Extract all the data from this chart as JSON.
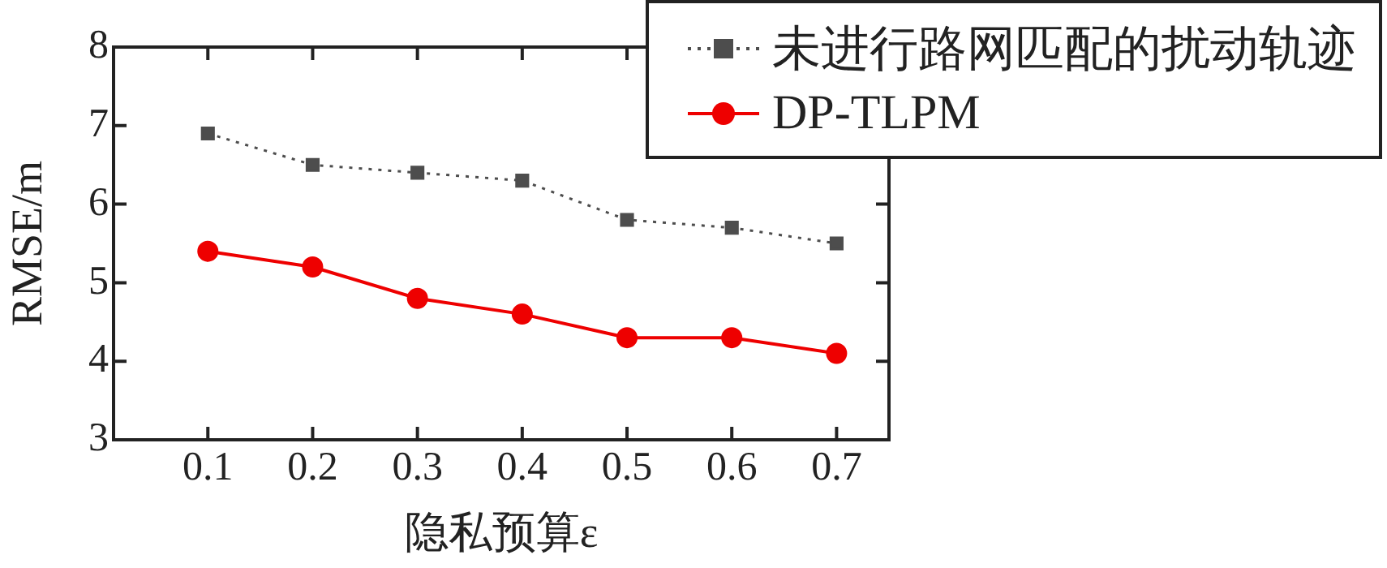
{
  "chart_data": {
    "type": "line",
    "xlabel": "隐私预算ε",
    "ylabel": "RMSE/m",
    "x": [
      0.1,
      0.2,
      0.3,
      0.4,
      0.5,
      0.6,
      0.7
    ],
    "xlim": [
      0.01,
      0.75
    ],
    "xticks": [
      0.1,
      0.2,
      0.3,
      0.4,
      0.5,
      0.6,
      0.7
    ],
    "ylim": [
      3,
      8
    ],
    "yticks": [
      3,
      4,
      5,
      6,
      7,
      8
    ],
    "grid": false,
    "legend": "top right",
    "series": [
      {
        "name": "未进行路网匹配的扰动轨迹",
        "color": "#4d4d4d",
        "marker": "square",
        "line_style": "dotted",
        "values": [
          6.9,
          6.5,
          6.4,
          6.3,
          5.8,
          5.7,
          5.5
        ]
      },
      {
        "name": "DP-TLPM",
        "color": "#ee0000",
        "marker": "circle",
        "line_style": "solid",
        "values": [
          5.4,
          5.2,
          4.8,
          4.6,
          4.3,
          4.3,
          4.1
        ]
      }
    ]
  }
}
